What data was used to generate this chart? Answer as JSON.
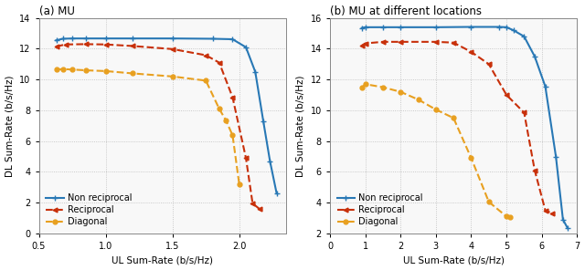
{
  "subplot_a": {
    "title": "(a) MU",
    "xlabel": "UL Sum-Rate (b/s/Hz)",
    "ylabel": "DL Sum-Rate (b/s/Hz)",
    "xlim": [
      0.5,
      2.35
    ],
    "ylim": [
      0,
      14
    ],
    "xticks": [
      0.5,
      1.0,
      1.5,
      2.0
    ],
    "yticks": [
      0,
      2,
      4,
      6,
      8,
      10,
      12,
      14
    ],
    "non_reciprocal": {
      "x": [
        0.63,
        0.68,
        0.75,
        0.85,
        1.0,
        1.2,
        1.5,
        1.8,
        1.95,
        2.05,
        2.12,
        2.18,
        2.23,
        2.28
      ],
      "y": [
        12.55,
        12.65,
        12.67,
        12.67,
        12.67,
        12.67,
        12.67,
        12.65,
        12.62,
        12.1,
        10.5,
        7.3,
        4.7,
        2.6
      ],
      "color": "#2878b5",
      "linestyle": "-",
      "marker": "+",
      "linewidth": 1.5,
      "markersize": 5
    },
    "reciprocal": {
      "x": [
        0.63,
        0.7,
        0.85,
        1.0,
        1.2,
        1.5,
        1.75,
        1.85,
        1.95,
        2.05,
        2.1,
        2.15
      ],
      "y": [
        12.15,
        12.28,
        12.3,
        12.28,
        12.18,
        11.98,
        11.58,
        11.1,
        8.85,
        4.9,
        1.95,
        1.6
      ],
      "color": "#c8300a",
      "linestyle": "--",
      "marker": "<",
      "linewidth": 1.5,
      "markersize": 3.5
    },
    "diagonal": {
      "x": [
        0.63,
        0.68,
        0.75,
        0.85,
        1.0,
        1.2,
        1.5,
        1.75,
        1.85,
        1.9,
        1.95,
        2.0
      ],
      "y": [
        10.65,
        10.68,
        10.65,
        10.6,
        10.55,
        10.4,
        10.2,
        9.93,
        8.1,
        7.35,
        6.38,
        3.2
      ],
      "color": "#e8a020",
      "linestyle": "--",
      "marker": "o",
      "linewidth": 1.5,
      "markersize": 3.5
    }
  },
  "subplot_b": {
    "title": "(b) MU at different locations",
    "xlabel": "UL Sum-Rate (b/s/Hz)",
    "ylabel": "DL Sum-Rate (b/s/Hz)",
    "xlim": [
      0,
      7.0
    ],
    "ylim": [
      2,
      16
    ],
    "xticks": [
      0,
      1,
      2,
      3,
      4,
      5,
      6,
      7
    ],
    "yticks": [
      2,
      4,
      6,
      8,
      10,
      12,
      14,
      16
    ],
    "non_reciprocal": {
      "x": [
        0.9,
        1.0,
        1.5,
        2.0,
        3.0,
        4.0,
        4.8,
        5.0,
        5.2,
        5.5,
        5.8,
        6.1,
        6.4,
        6.6,
        6.73
      ],
      "y": [
        15.35,
        15.4,
        15.4,
        15.4,
        15.4,
        15.42,
        15.42,
        15.4,
        15.2,
        14.8,
        13.5,
        11.55,
        7.0,
        2.9,
        2.35
      ],
      "color": "#2878b5",
      "linestyle": "-",
      "marker": "+",
      "linewidth": 1.5,
      "markersize": 5
    },
    "reciprocal": {
      "x": [
        0.9,
        1.0,
        1.5,
        2.0,
        3.0,
        3.5,
        4.0,
        4.5,
        5.0,
        5.5,
        5.8,
        6.1,
        6.3
      ],
      "y": [
        14.2,
        14.35,
        14.45,
        14.45,
        14.45,
        14.4,
        13.8,
        13.0,
        11.0,
        9.85,
        6.1,
        3.5,
        3.3
      ],
      "color": "#c8300a",
      "linestyle": "--",
      "marker": "<",
      "linewidth": 1.5,
      "markersize": 3.5
    },
    "diagonal": {
      "x": [
        0.9,
        1.0,
        1.5,
        2.0,
        2.5,
        3.0,
        3.5,
        4.0,
        4.5,
        5.0,
        5.1
      ],
      "y": [
        11.45,
        11.7,
        11.5,
        11.2,
        10.7,
        10.05,
        9.5,
        6.9,
        4.05,
        3.1,
        3.05
      ],
      "color": "#e8a020",
      "linestyle": "--",
      "marker": "o",
      "linewidth": 1.5,
      "markersize": 3.5
    }
  },
  "background_color": "#ffffff",
  "plot_bg_color": "#f8f8f8",
  "grid_color": "#bbbbbb",
  "legend_labels": [
    "Non reciprocal",
    "Reciprocal",
    "Diagonal"
  ]
}
